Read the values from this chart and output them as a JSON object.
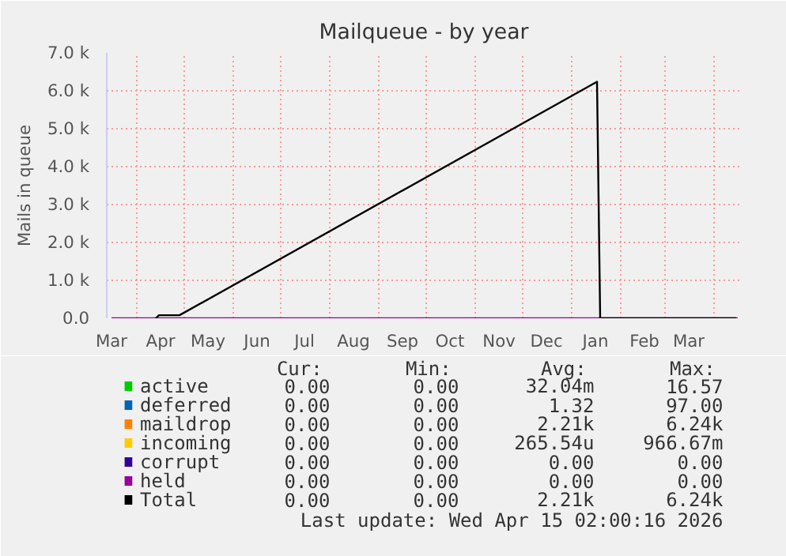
{
  "chart_data": {
    "type": "line",
    "title": "Mailqueue - by year",
    "ylabel": "Mails in queue",
    "x": [
      "2025-04-13",
      "2025-04-15",
      "2025-04-28",
      "2026-01-17",
      "2026-01-19",
      "2026-04-15"
    ],
    "series": [
      {
        "name": "active",
        "color": "#00cc00",
        "values": [
          null,
          null,
          null,
          null,
          null,
          null
        ]
      },
      {
        "name": "deferred",
        "color": "#0066b3",
        "values": [
          null,
          null,
          null,
          null,
          null,
          null
        ]
      },
      {
        "name": "maildrop",
        "color": "#ff8000",
        "values": [
          null,
          null,
          null,
          null,
          null,
          null
        ]
      },
      {
        "name": "incoming",
        "color": "#ffcc00",
        "values": [
          null,
          null,
          null,
          null,
          null,
          null
        ]
      },
      {
        "name": "corrupt",
        "color": "#330099",
        "values": [
          null,
          null,
          null,
          null,
          null,
          null
        ]
      },
      {
        "name": "held",
        "color": "#990099",
        "x": [
          "2025-03-16",
          "2026-04-16"
        ],
        "values": [
          0,
          0
        ]
      },
      {
        "name": "Total",
        "color": "#000000",
        "values": [
          0,
          80,
          80,
          6240,
          0,
          0
        ]
      }
    ],
    "xlim": [
      "2025-03-13",
      "2026-04-18"
    ],
    "xticks": [
      {
        "value": "2025-03-16",
        "label": "Mar"
      },
      {
        "value": "2025-04-01",
        "label": null
      },
      {
        "value": "2025-04-16",
        "label": "Apr"
      },
      {
        "value": "2025-05-01",
        "label": null
      },
      {
        "value": "2025-05-16",
        "label": "May"
      },
      {
        "value": "2025-06-01",
        "label": null
      },
      {
        "value": "2025-06-16",
        "label": "Jun"
      },
      {
        "value": "2025-07-01",
        "label": null
      },
      {
        "value": "2025-07-16",
        "label": "Jul"
      },
      {
        "value": "2025-08-01",
        "label": null
      },
      {
        "value": "2025-08-16",
        "label": "Aug"
      },
      {
        "value": "2025-09-01",
        "label": null
      },
      {
        "value": "2025-09-16",
        "label": "Sep"
      },
      {
        "value": "2025-10-01",
        "label": null
      },
      {
        "value": "2025-10-16",
        "label": "Oct"
      },
      {
        "value": "2025-11-01",
        "label": null
      },
      {
        "value": "2025-11-16",
        "label": "Nov"
      },
      {
        "value": "2025-12-01",
        "label": null
      },
      {
        "value": "2025-12-16",
        "label": "Dec"
      },
      {
        "value": "2026-01-01",
        "label": null
      },
      {
        "value": "2026-01-16",
        "label": "Jan"
      },
      {
        "value": "2026-02-01",
        "label": null
      },
      {
        "value": "2026-02-16",
        "label": "Feb"
      },
      {
        "value": "2026-03-01",
        "label": null
      },
      {
        "value": "2026-03-16",
        "label": "Mar"
      },
      {
        "value": "2026-04-01",
        "label": null
      }
    ],
    "ylim": [
      0,
      7000
    ],
    "yticks": [
      {
        "value": 0,
        "label": "0.0"
      },
      {
        "value": 1000,
        "label": "1.0 k"
      },
      {
        "value": 2000,
        "label": "2.0 k"
      },
      {
        "value": 3000,
        "label": "3.0 k"
      },
      {
        "value": 4000,
        "label": "4.0 k"
      },
      {
        "value": 5000,
        "label": "5.0 k"
      },
      {
        "value": 6000,
        "label": "6.0 k"
      },
      {
        "value": 7000,
        "label": "7.0 k"
      }
    ],
    "grid": true,
    "legend": "bottom",
    "line_style": "solid",
    "annotations": [
      "Cur:",
      "Min:",
      "Avg:",
      "Max:",
      "0.00",
      "0.00",
      "32.04m",
      "16.57",
      "0.00",
      "0.00",
      "1.32",
      "97.00",
      "0.00",
      "0.00",
      "2.21k",
      "6.24k",
      "0.00",
      "0.00",
      "265.54u",
      "966.67m",
      "0.00",
      "0.00",
      "0.00",
      "0.00",
      "0.00",
      "0.00",
      "0.00",
      "0.00",
      "0.00",
      "0.00",
      "2.21k",
      "6.24k",
      "Last update: Wed Apr 15 02:00:16 2026"
    ]
  }
}
